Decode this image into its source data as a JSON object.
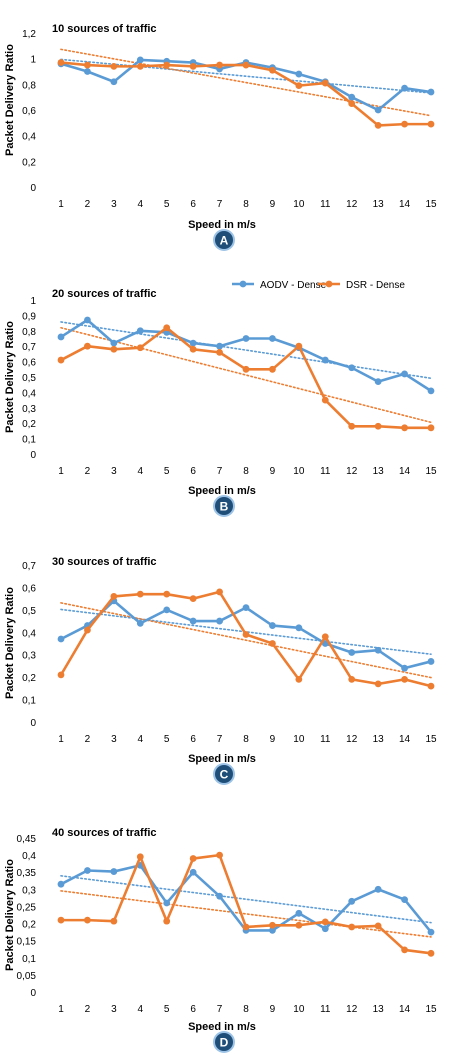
{
  "colors": {
    "aodv": "#5b9bd5",
    "dsr": "#ed7d31",
    "badge": "#1f4e79",
    "badge_ring": "#9dc3e6"
  },
  "legend": [
    {
      "name": "AODV - Dense",
      "color": "#5b9bd5"
    },
    {
      "name": "DSR - Dense",
      "color": "#ed7d31"
    }
  ],
  "chart_data": [
    {
      "type": "line",
      "title": "10 sources of traffic",
      "xlabel": "Speed in m/s",
      "ylabel": "Packet Delivery Ratio",
      "badge": "A",
      "x": [
        1,
        2,
        3,
        4,
        5,
        6,
        7,
        8,
        9,
        10,
        11,
        12,
        13,
        14,
        15
      ],
      "ylim": [
        0,
        1.2
      ],
      "yticks": [
        "0",
        "0,2",
        "0,4",
        "0,6",
        "0,8",
        "1",
        "1,2"
      ],
      "ytick_values": [
        0,
        0.2,
        0.4,
        0.6,
        0.8,
        1,
        1.2
      ],
      "trendlines": "linear, dotted",
      "series": [
        {
          "name": "AODV - Dense",
          "values": [
            0.96,
            0.9,
            0.82,
            0.99,
            0.98,
            0.97,
            0.92,
            0.97,
            0.93,
            0.88,
            0.82,
            0.7,
            0.6,
            0.77,
            0.74
          ]
        },
        {
          "name": "DSR - Dense",
          "values": [
            0.97,
            0.95,
            0.94,
            0.94,
            0.95,
            0.94,
            0.95,
            0.95,
            0.91,
            0.79,
            0.81,
            0.65,
            0.48,
            0.49,
            0.49
          ]
        }
      ]
    },
    {
      "type": "line",
      "title": "20 sources of traffic",
      "xlabel": "Speed in m/s",
      "ylabel": "Packet Delivery Ratio",
      "badge": "B",
      "x": [
        1,
        2,
        3,
        4,
        5,
        6,
        7,
        8,
        9,
        10,
        11,
        12,
        13,
        14,
        15
      ],
      "ylim": [
        0,
        1
      ],
      "yticks": [
        "0",
        "0,1",
        "0,2",
        "0,3",
        "0,4",
        "0,5",
        "0,6",
        "0,7",
        "0,8",
        "0,9",
        "1"
      ],
      "ytick_values": [
        0,
        0.1,
        0.2,
        0.3,
        0.4,
        0.5,
        0.6,
        0.7,
        0.8,
        0.9,
        1
      ],
      "show_legend": true,
      "trendlines": "linear, dotted",
      "series": [
        {
          "name": "AODV - Dense",
          "values": [
            0.76,
            0.87,
            0.72,
            0.8,
            0.79,
            0.72,
            0.7,
            0.75,
            0.75,
            0.69,
            0.61,
            0.56,
            0.47,
            0.52,
            0.41
          ]
        },
        {
          "name": "DSR - Dense",
          "values": [
            0.61,
            0.7,
            0.68,
            0.69,
            0.82,
            0.68,
            0.66,
            0.55,
            0.55,
            0.7,
            0.35,
            0.18,
            0.18,
            0.17,
            0.17
          ]
        }
      ]
    },
    {
      "type": "line",
      "title": "30 sources of traffic",
      "xlabel": "Speed in m/s",
      "ylabel": "Packet Delivery Ratio",
      "badge": "C",
      "x": [
        1,
        2,
        3,
        4,
        5,
        6,
        7,
        8,
        9,
        10,
        11,
        12,
        13,
        14,
        15
      ],
      "ylim": [
        0,
        0.7
      ],
      "yticks": [
        "0",
        "0,1",
        "0,2",
        "0,3",
        "0,4",
        "0,5",
        "0,6",
        "0,7"
      ],
      "ytick_values": [
        0,
        0.1,
        0.2,
        0.3,
        0.4,
        0.5,
        0.6,
        0.7
      ],
      "trendlines": "linear, dotted",
      "series": [
        {
          "name": "AODV - Dense",
          "values": [
            0.37,
            0.43,
            0.54,
            0.44,
            0.5,
            0.45,
            0.45,
            0.51,
            0.43,
            0.42,
            0.35,
            0.31,
            0.32,
            0.24,
            0.27
          ]
        },
        {
          "name": "DSR - Dense",
          "values": [
            0.21,
            0.41,
            0.56,
            0.57,
            0.57,
            0.55,
            0.58,
            0.39,
            0.35,
            0.19,
            0.38,
            0.19,
            0.17,
            0.19,
            0.16
          ]
        }
      ]
    },
    {
      "type": "line",
      "title": "40 sources of traffic",
      "xlabel": "Speed in m/s",
      "ylabel": "Packet Delivery Ratio",
      "badge": "D",
      "x": [
        1,
        2,
        3,
        4,
        5,
        6,
        7,
        8,
        9,
        10,
        11,
        12,
        13,
        14,
        15
      ],
      "ylim": [
        0,
        0.45
      ],
      "yticks": [
        "0",
        "0,05",
        "0,1",
        "0,15",
        "0,2",
        "0,25",
        "0,3",
        "0,35",
        "0,4",
        "0,45"
      ],
      "ytick_values": [
        0,
        0.05,
        0.1,
        0.15,
        0.2,
        0.25,
        0.3,
        0.35,
        0.4,
        0.45
      ],
      "trendlines": "linear, dotted",
      "series": [
        {
          "name": "AODV - Dense",
          "values": [
            0.315,
            0.355,
            0.352,
            0.37,
            0.26,
            0.35,
            0.28,
            0.18,
            0.18,
            0.23,
            0.185,
            0.265,
            0.3,
            0.27,
            0.175
          ]
        },
        {
          "name": "DSR - Dense",
          "values": [
            0.21,
            0.21,
            0.207,
            0.395,
            0.207,
            0.39,
            0.4,
            0.19,
            0.195,
            0.195,
            0.205,
            0.19,
            0.193,
            0.123,
            0.113
          ]
        }
      ]
    }
  ]
}
